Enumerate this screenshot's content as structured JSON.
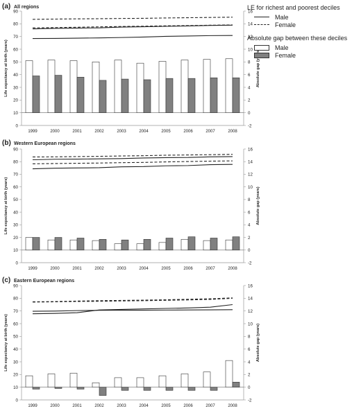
{
  "legend": {
    "le_title": "LE for richest and poorest deciles",
    "gap_title": "Absolute gap between these deciles",
    "male": "Male",
    "female": "Female"
  },
  "colors": {
    "male_bar": "#ffffff",
    "female_bar": "#808080",
    "bar_stroke": "#333333",
    "line": "#222222",
    "axis": "#999999",
    "zero_line": "#666666"
  },
  "chart_data": [
    {
      "panel_letter": "(a)",
      "title": "All regions",
      "type": "bar+line",
      "x": [
        "1999",
        "2000",
        "2001",
        "2002",
        "2003",
        "2004",
        "2005",
        "2006",
        "2007",
        "2008"
      ],
      "ylabel": "Life expectancy at birth (years)",
      "ylim": [
        0,
        90
      ],
      "yticks": [
        0,
        10,
        20,
        30,
        40,
        50,
        60,
        70,
        80,
        90
      ],
      "y2label": "Absolute gap (years)",
      "y2lim": [
        -2,
        16
      ],
      "y2ticks": [
        -2,
        0,
        2,
        4,
        6,
        8,
        10,
        12,
        14,
        16
      ],
      "lines": [
        {
          "sex": "Male",
          "decile": "richest",
          "style": "dashed",
          "values": [
            76.8,
            77.0,
            77.3,
            77.6,
            77.9,
            78.1,
            78.4,
            78.6,
            78.9,
            79.1
          ]
        },
        {
          "sex": "Female",
          "decile": "richest",
          "style": "dashed",
          "values": [
            83.5,
            83.7,
            83.9,
            84.0,
            84.2,
            84.3,
            84.6,
            84.8,
            85.0,
            85.2
          ]
        },
        {
          "sex": "Male",
          "decile": "poorest",
          "style": "solid",
          "values": [
            68.4,
            68.5,
            68.7,
            68.9,
            69.2,
            69.6,
            70.1,
            70.4,
            70.7,
            70.8
          ]
        },
        {
          "sex": "Female",
          "decile": "poorest",
          "style": "solid",
          "values": [
            76.0,
            76.4,
            76.6,
            76.8,
            77.4,
            77.7,
            78.0,
            78.3,
            78.7,
            78.9
          ]
        }
      ],
      "bars": [
        {
          "name": "Male",
          "values": [
            8.2,
            8.3,
            8.2,
            8.0,
            8.3,
            7.8,
            8.1,
            8.3,
            8.4,
            8.5
          ]
        },
        {
          "name": "Female",
          "values": [
            5.8,
            5.9,
            5.6,
            5.1,
            5.3,
            5.2,
            5.4,
            5.4,
            5.5,
            5.5
          ]
        }
      ]
    },
    {
      "panel_letter": "(b)",
      "title": "Western European regions",
      "type": "bar+line",
      "x": [
        "1999",
        "2000",
        "2001",
        "2002",
        "2003",
        "2004",
        "2005",
        "2006",
        "2007",
        "2008"
      ],
      "ylabel": "Life expectancy at birth (years)",
      "ylim": [
        0,
        90
      ],
      "yticks": [
        0,
        10,
        20,
        30,
        40,
        50,
        60,
        70,
        80,
        90
      ],
      "y2label": "Absolute gap (years)",
      "y2lim": [
        -2,
        16
      ],
      "y2ticks": [
        -2,
        0,
        2,
        4,
        6,
        8,
        10,
        12,
        14,
        16
      ],
      "lines": [
        {
          "sex": "Male",
          "decile": "richest",
          "style": "dashed",
          "values": [
            78.3,
            78.5,
            78.7,
            78.9,
            79.2,
            79.4,
            79.8,
            80.1,
            80.4,
            80.6
          ]
        },
        {
          "sex": "Female",
          "decile": "richest",
          "style": "dashed",
          "values": [
            83.7,
            83.8,
            84.0,
            84.2,
            84.5,
            84.7,
            85.1,
            85.3,
            85.5,
            85.8
          ]
        },
        {
          "sex": "Male",
          "decile": "poorest",
          "style": "solid",
          "values": [
            74.3,
            74.8,
            75.0,
            75.2,
            75.9,
            76.1,
            76.7,
            76.9,
            77.6,
            77.8
          ]
        },
        {
          "sex": "Female",
          "decile": "poorest",
          "style": "solid",
          "values": [
            81.5,
            81.9,
            82.0,
            82.2,
            82.4,
            82.9,
            83.2,
            83.3,
            83.8,
            84.0
          ]
        }
      ],
      "bars": [
        {
          "name": "Male",
          "values": [
            2.0,
            1.6,
            1.6,
            1.5,
            1.0,
            1.0,
            1.2,
            1.7,
            1.5,
            1.6
          ]
        },
        {
          "name": "Female",
          "values": [
            2.0,
            2.0,
            1.9,
            1.7,
            1.6,
            1.7,
            1.9,
            2.1,
            1.9,
            2.1
          ]
        }
      ]
    },
    {
      "panel_letter": "(c)",
      "title": "Eastern European regions",
      "type": "bar+line",
      "x": [
        "1999",
        "2000",
        "2001",
        "2002",
        "2003",
        "2004",
        "2005",
        "2006",
        "2007",
        "2008"
      ],
      "ylabel": "Life expectancy at birth (years)",
      "ylim": [
        0,
        90
      ],
      "yticks": [
        0,
        10,
        20,
        30,
        40,
        50,
        60,
        70,
        80,
        90
      ],
      "y2label": "Absolute gap (years)",
      "y2lim": [
        -2,
        16
      ],
      "y2ticks": [
        -2,
        0,
        2,
        4,
        6,
        8,
        10,
        12,
        14,
        16
      ],
      "lines": [
        {
          "sex": "Male",
          "decile": "richest",
          "style": "dashed",
          "values": [
            77.2,
            77.4,
            77.8,
            78.1,
            78.3,
            78.5,
            78.8,
            79.2,
            79.6,
            80.3
          ]
        },
        {
          "sex": "Female",
          "decile": "richest",
          "style": "dashed",
          "values": [
            77.0,
            77.2,
            77.5,
            77.6,
            77.9,
            78.1,
            78.4,
            78.7,
            79.1,
            80.0
          ]
        },
        {
          "sex": "Male",
          "decile": "poorest",
          "style": "solid",
          "values": [
            67.8,
            68.1,
            68.6,
            70.8,
            71.2,
            71.6,
            72.0,
            72.4,
            73.0,
            75.0
          ]
        },
        {
          "sex": "Female",
          "decile": "poorest",
          "style": "solid",
          "values": [
            69.8,
            69.9,
            70.3,
            70.5,
            70.6,
            70.6,
            70.7,
            70.8,
            70.9,
            71.0
          ]
        }
      ],
      "bars": [
        {
          "name": "Male",
          "values": [
            1.8,
            2.1,
            2.2,
            0.7,
            1.5,
            1.5,
            1.8,
            2.1,
            2.4,
            4.2
          ]
        },
        {
          "name": "Female",
          "values": [
            -0.3,
            -0.2,
            -0.3,
            -1.3,
            -0.5,
            -0.5,
            -0.5,
            -0.5,
            -0.5,
            0.8
          ]
        }
      ]
    }
  ]
}
